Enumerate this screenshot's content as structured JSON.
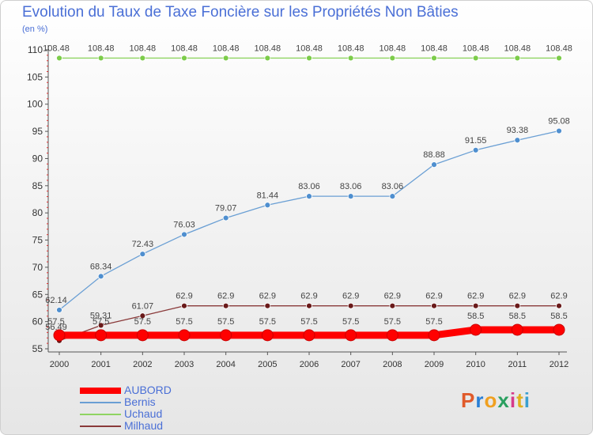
{
  "title": "Evolution du Taux de Taxe Foncière sur les Propriétés Non Bâties",
  "subtitle": "(en %)",
  "logo": {
    "letters": [
      "P",
      "r",
      "o",
      "x",
      "i",
      "t",
      "i"
    ],
    "colors": [
      "#e05a2a",
      "#2a7fd6",
      "#f0a020",
      "#2aa060",
      "#d63a8a",
      "#e0b020",
      "#3aa0d0"
    ]
  },
  "chart_data": {
    "type": "line",
    "title": "Evolution du Taux de Taxe Foncière sur les Propriétés Non Bâties",
    "ylabel": "(en %)",
    "x": [
      "2000",
      "2001",
      "2002",
      "2003",
      "2004",
      "2005",
      "2006",
      "2007",
      "2008",
      "2009",
      "2010",
      "2011",
      "2012"
    ],
    "ylim": [
      55,
      110
    ],
    "yticks": [
      55,
      60,
      65,
      70,
      75,
      80,
      85,
      90,
      95,
      100,
      105,
      110
    ],
    "grid": false,
    "legend_position": "bottom-left",
    "series": [
      {
        "name": "AUBORD",
        "color": "#ff0000",
        "values": [
          57.5,
          57.5,
          57.5,
          57.5,
          57.5,
          57.5,
          57.5,
          57.5,
          57.5,
          57.5,
          58.5,
          58.5,
          58.5
        ],
        "labels": [
          "57.5",
          "57.5",
          "57.5",
          "57.5",
          "57.5",
          "57.5",
          "57.5",
          "57.5",
          "57.5",
          "57.5",
          "58.5",
          "58.5",
          "58.5"
        ]
      },
      {
        "name": "Bernis",
        "color": "#6a9fd4",
        "values": [
          62.14,
          68.34,
          72.43,
          76.03,
          79.07,
          81.44,
          83.06,
          83.06,
          83.06,
          88.88,
          91.55,
          93.38,
          95.08
        ],
        "labels": [
          "62.14",
          "68.34",
          "72.43",
          "76.03",
          "79.07",
          "81.44",
          "83.06",
          "83.06",
          "83.06",
          "88.88",
          "91.55",
          "93.38",
          "95.08"
        ]
      },
      {
        "name": "Uchaud",
        "color": "#8fd462",
        "values": [
          108.48,
          108.48,
          108.48,
          108.48,
          108.48,
          108.48,
          108.48,
          108.48,
          108.48,
          108.48,
          108.48,
          108.48,
          108.48
        ],
        "labels": [
          "108.48",
          "108.48",
          "108.48",
          "108.48",
          "108.48",
          "108.48",
          "108.48",
          "108.48",
          "108.48",
          "108.48",
          "108.48",
          "108.48",
          "108.48"
        ]
      },
      {
        "name": "Milhaud",
        "color": "#8a3a3a",
        "values": [
          56.49,
          59.31,
          61.07,
          62.9,
          62.9,
          62.9,
          62.9,
          62.9,
          62.9,
          62.9,
          62.9,
          62.9,
          62.9
        ],
        "labels": [
          "56.49",
          "59.31",
          "61.07",
          "62.9",
          "62.9",
          "62.9",
          "62.9",
          "62.9",
          "62.9",
          "62.9",
          "62.9",
          "62.9",
          "62.9"
        ]
      }
    ]
  }
}
